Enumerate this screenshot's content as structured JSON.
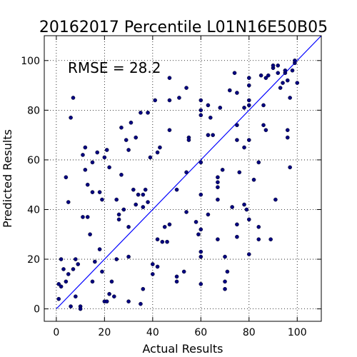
{
  "chart_data": {
    "type": "scatter",
    "title": "20162017 Percentile L01N16E50B05",
    "xlabel": "Actual Results",
    "ylabel": "Predicted Results",
    "xlim": [
      -5,
      110
    ],
    "ylim": [
      -5,
      110
    ],
    "xticks": [
      "0",
      "20",
      "40",
      "60",
      "80",
      "100"
    ],
    "yticks": [
      "0",
      "20",
      "40",
      "60",
      "80",
      "100"
    ],
    "grid": true,
    "annotation": "RMSE = 28.2",
    "reference_line": {
      "from": [
        0,
        0
      ],
      "to": [
        110,
        110
      ],
      "color": "#0000ff"
    },
    "point_color": "#000080",
    "points": [
      [
        1,
        10
      ],
      [
        1,
        4
      ],
      [
        2,
        9
      ],
      [
        2,
        20
      ],
      [
        3,
        16
      ],
      [
        4,
        11
      ],
      [
        4,
        53
      ],
      [
        5,
        14
      ],
      [
        5,
        43
      ],
      [
        6,
        1
      ],
      [
        6,
        77
      ],
      [
        7,
        85
      ],
      [
        7,
        16
      ],
      [
        8,
        20
      ],
      [
        8,
        5
      ],
      [
        9,
        18
      ],
      [
        10,
        1
      ],
      [
        10,
        0
      ],
      [
        11,
        62
      ],
      [
        11,
        37
      ],
      [
        12,
        56
      ],
      [
        12,
        65
      ],
      [
        13,
        50
      ],
      [
        13,
        37
      ],
      [
        14,
        30
      ],
      [
        15,
        59
      ],
      [
        15,
        47
      ],
      [
        15,
        11
      ],
      [
        16,
        19
      ],
      [
        17,
        63
      ],
      [
        18,
        24
      ],
      [
        18,
        47
      ],
      [
        19,
        44
      ],
      [
        19,
        15
      ],
      [
        20,
        3
      ],
      [
        20,
        61
      ],
      [
        21,
        3
      ],
      [
        21,
        64
      ],
      [
        22,
        57
      ],
      [
        22,
        6
      ],
      [
        23,
        11
      ],
      [
        24,
        5
      ],
      [
        25,
        20
      ],
      [
        25,
        44
      ],
      [
        26,
        36
      ],
      [
        26,
        38
      ],
      [
        27,
        73
      ],
      [
        27,
        54
      ],
      [
        28,
        40
      ],
      [
        29,
        68
      ],
      [
        30,
        64
      ],
      [
        30,
        33
      ],
      [
        30,
        21
      ],
      [
        30,
        3
      ],
      [
        31,
        75
      ],
      [
        32,
        48
      ],
      [
        33,
        42
      ],
      [
        33,
        69
      ],
      [
        34,
        46
      ],
      [
        35,
        2
      ],
      [
        35,
        79
      ],
      [
        36,
        46
      ],
      [
        36,
        41
      ],
      [
        36,
        8
      ],
      [
        37,
        48
      ],
      [
        38,
        79
      ],
      [
        38,
        43
      ],
      [
        39,
        61
      ],
      [
        40,
        14
      ],
      [
        40,
        18
      ],
      [
        41,
        84
      ],
      [
        42,
        63
      ],
      [
        42,
        17
      ],
      [
        42,
        28
      ],
      [
        43,
        65
      ],
      [
        44,
        27
      ],
      [
        45,
        33
      ],
      [
        46,
        27
      ],
      [
        47,
        84
      ],
      [
        47,
        72
      ],
      [
        47,
        93
      ],
      [
        47,
        34
      ],
      [
        50,
        48
      ],
      [
        50,
        13
      ],
      [
        50,
        11
      ],
      [
        51,
        85
      ],
      [
        53,
        15
      ],
      [
        54,
        89
      ],
      [
        54,
        55
      ],
      [
        54,
        39
      ],
      [
        55,
        69
      ],
      [
        55,
        68
      ],
      [
        58,
        35
      ],
      [
        59,
        30
      ],
      [
        60,
        84
      ],
      [
        60,
        80
      ],
      [
        60,
        78
      ],
      [
        60,
        59
      ],
      [
        60,
        46
      ],
      [
        60,
        32
      ],
      [
        60,
        23
      ],
      [
        60,
        21
      ],
      [
        60,
        10
      ],
      [
        63,
        82
      ],
      [
        63,
        70
      ],
      [
        63,
        38
      ],
      [
        64,
        77
      ],
      [
        65,
        70
      ],
      [
        67,
        53
      ],
      [
        67,
        51
      ],
      [
        67,
        49
      ],
      [
        67,
        44
      ],
      [
        67,
        28
      ],
      [
        68,
        81
      ],
      [
        69,
        56
      ],
      [
        70,
        21
      ],
      [
        70,
        11
      ],
      [
        70,
        8
      ],
      [
        71,
        15
      ],
      [
        72,
        88
      ],
      [
        73,
        41
      ],
      [
        74,
        95
      ],
      [
        75,
        87
      ],
      [
        75,
        74
      ],
      [
        75,
        68
      ],
      [
        75,
        34
      ],
      [
        75,
        29
      ],
      [
        76,
        55
      ],
      [
        78,
        81
      ],
      [
        78,
        65
      ],
      [
        78,
        42
      ],
      [
        79,
        40
      ],
      [
        80,
        93
      ],
      [
        80,
        90
      ],
      [
        80,
        84
      ],
      [
        80,
        82
      ],
      [
        80,
        68
      ],
      [
        80,
        36
      ],
      [
        80,
        22
      ],
      [
        82,
        52
      ],
      [
        84,
        59
      ],
      [
        84,
        33
      ],
      [
        84,
        28
      ],
      [
        85,
        94
      ],
      [
        86,
        74
      ],
      [
        86,
        82
      ],
      [
        87,
        72
      ],
      [
        87,
        93
      ],
      [
        88,
        94
      ],
      [
        89,
        28
      ],
      [
        90,
        97
      ],
      [
        90,
        98
      ],
      [
        91,
        44
      ],
      [
        92,
        98
      ],
      [
        92,
        95
      ],
      [
        93,
        89
      ],
      [
        94,
        91
      ],
      [
        95,
        95
      ],
      [
        95,
        96
      ],
      [
        96,
        92
      ],
      [
        96,
        72
      ],
      [
        96,
        69
      ],
      [
        97,
        85
      ],
      [
        97,
        57
      ],
      [
        98,
        96
      ],
      [
        99,
        99
      ],
      [
        99,
        100
      ],
      [
        100,
        91
      ]
    ]
  }
}
